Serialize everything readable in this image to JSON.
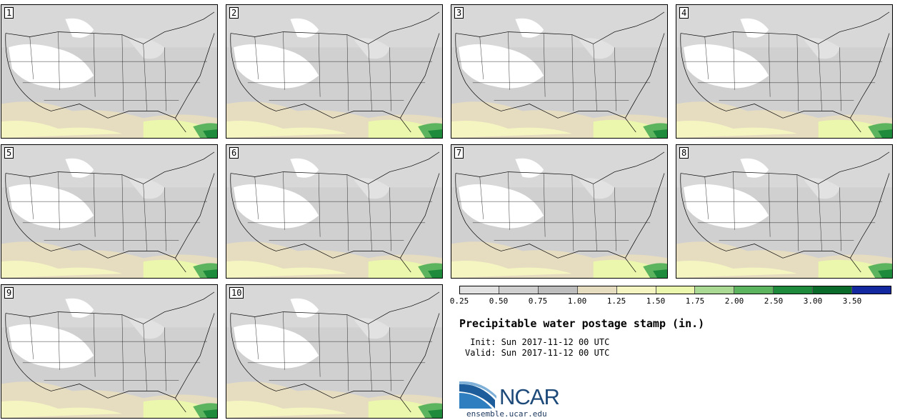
{
  "panels": [
    {
      "label": "1"
    },
    {
      "label": "2"
    },
    {
      "label": "3"
    },
    {
      "label": "4"
    },
    {
      "label": "5"
    },
    {
      "label": "6"
    },
    {
      "label": "7"
    },
    {
      "label": "8"
    },
    {
      "label": "9"
    },
    {
      "label": "10"
    }
  ],
  "colorbar": {
    "labels": [
      "0.25",
      "0.50",
      "0.75",
      "1.00",
      "1.25",
      "1.50",
      "1.75",
      "2.00",
      "2.50",
      "3.00",
      "3.50"
    ],
    "colors": [
      "#e1e1e1",
      "#cfcfcf",
      "#bdbdbd",
      "#e6dcc0",
      "#f5f5c2",
      "#ebf7ac",
      "#a9d993",
      "#5cb45f",
      "#1e8a3c",
      "#0a6b2a",
      "#1428a0"
    ]
  },
  "title": "Precipitable water postage stamp (in.)",
  "init": " Init: Sun 2017-11-12 00 UTC",
  "valid": "Valid: Sun 2017-11-12 00 UTC",
  "logo": {
    "text": "NCAR",
    "site": "ensemble.ucar.edu"
  }
}
